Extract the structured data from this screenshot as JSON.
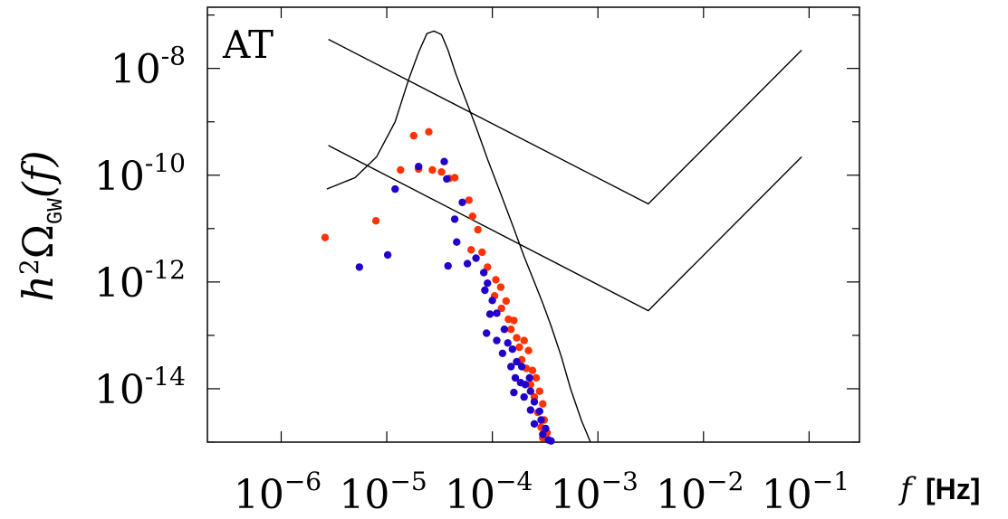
{
  "chart_data": {
    "type": "scatter",
    "title": "",
    "panel_label": "AT",
    "xlabel": "f",
    "xunit": "[Hz]",
    "ylabel": "h²Ω_GW(f)",
    "ylabel_parts": {
      "main": "h",
      "sup": "2",
      "omega": "Ω",
      "sub": "GW",
      "arg": "(f)"
    },
    "x_scale": "log",
    "y_scale": "log",
    "xlim": [
      2e-07,
      0.3
    ],
    "ylim": [
      1e-15,
      1.4e-07
    ],
    "x_ticks": [
      {
        "value": 1e-06,
        "base": "10",
        "exp": "−6"
      },
      {
        "value": 1e-05,
        "base": "10",
        "exp": "−5"
      },
      {
        "value": 0.0001,
        "base": "10",
        "exp": "−4"
      },
      {
        "value": 0.001,
        "base": "10",
        "exp": "−3"
      },
      {
        "value": 0.01,
        "base": "10",
        "exp": "−2"
      },
      {
        "value": 0.1,
        "base": "10",
        "exp": "−1"
      }
    ],
    "y_ticks": [
      {
        "value": 1e-08,
        "base": "10",
        "exp": "-8"
      },
      {
        "value": 1e-10,
        "base": "10",
        "exp": "-10"
      },
      {
        "value": 1e-12,
        "base": "10",
        "exp": "-12"
      },
      {
        "value": 1e-14,
        "base": "10",
        "exp": "-14"
      }
    ],
    "grid": false,
    "series": [
      {
        "type": "scatter",
        "color": "#ff3300",
        "points": [
          [
            2.6e-06,
            6.8e-12
          ],
          [
            7.9e-06,
            1.4e-11
          ],
          [
            1.35e-05,
            1.25e-10
          ],
          [
            1.8e-05,
            5.5e-10
          ],
          [
            2.5e-05,
            6.5e-10
          ],
          [
            2e-05,
            1.3e-10
          ],
          [
            2.7e-05,
            1.25e-10
          ],
          [
            3.3e-05,
            1.15e-10
          ],
          [
            3.9e-05,
            8.7e-11
          ],
          [
            4.4e-05,
            9e-11
          ],
          [
            6e-05,
            3.4e-11
          ],
          [
            6.5e-05,
            1.7e-11
          ],
          [
            7.3e-05,
            9.5e-12
          ],
          [
            8e-05,
            3.6e-12
          ],
          [
            6.3e-05,
            4e-12
          ],
          [
            9e-05,
            1.9e-12
          ],
          [
            0.000108,
            1.1e-12
          ],
          [
            0.00012,
            8e-13
          ],
          [
            0.000105,
            5.5e-13
          ],
          [
            0.000135,
            4.4e-13
          ],
          [
            0.000122,
            3.2e-13
          ],
          [
            0.000142,
            2e-13
          ],
          [
            0.00016,
            1.9e-13
          ],
          [
            0.00015,
            1.3e-13
          ],
          [
            0.00017,
            9e-14
          ],
          [
            0.0002,
            8e-14
          ],
          [
            0.00018,
            6e-14
          ],
          [
            0.00022,
            5.2e-14
          ],
          [
            0.00019,
            3.5e-14
          ],
          [
            0.00021,
            2.4e-14
          ],
          [
            0.00024,
            2.2e-14
          ],
          [
            0.00026,
            1.6e-14
          ],
          [
            0.00023,
            1.2e-14
          ],
          [
            0.00028,
            9e-15
          ],
          [
            0.00025,
            7e-15
          ],
          [
            0.0003,
            5.2e-15
          ],
          [
            0.00027,
            3.6e-15
          ],
          [
            0.00031,
            2.6e-15
          ],
          [
            0.00029,
            1.9e-15
          ],
          [
            0.00033,
            1.5e-15
          ],
          [
            0.0003,
            1.2e-15
          ]
        ]
      },
      {
        "type": "scatter",
        "color": "#2200cc",
        "points": [
          [
            5.5e-06,
            1.9e-12
          ],
          [
            1.02e-05,
            3.2e-12
          ],
          [
            1.2e-05,
            5.5e-11
          ],
          [
            2e-05,
            1.45e-10
          ],
          [
            3.5e-05,
            1.8e-10
          ],
          [
            3.7e-05,
            8.5e-11
          ],
          [
            5.2e-05,
            3.1e-11
          ],
          [
            4.4e-05,
            1.5e-11
          ],
          [
            4.6e-05,
            5.6e-12
          ],
          [
            3.8e-05,
            2e-12
          ],
          [
            5.8e-05,
            2.2e-12
          ],
          [
            7e-05,
            2.8e-12
          ],
          [
            8.3e-05,
            1.5e-12
          ],
          [
            9e-05,
            9.5e-13
          ],
          [
            8.5e-05,
            7e-13
          ],
          [
            0.0001,
            4.5e-13
          ],
          [
            9.5e-05,
            2.5e-13
          ],
          [
            0.00011,
            2.6e-13
          ],
          [
            8.8e-05,
            1.1e-13
          ],
          [
            0.00013,
            1.3e-13
          ],
          [
            0.00011,
            8e-14
          ],
          [
            0.00014,
            7.2e-14
          ],
          [
            0.000125,
            4.6e-14
          ],
          [
            0.000155,
            5.5e-14
          ],
          [
            0.00017,
            3.2e-14
          ],
          [
            0.00015,
            2.6e-14
          ],
          [
            0.00019,
            2.6e-14
          ],
          [
            0.000165,
            1.6e-14
          ],
          [
            0.000185,
            1.3e-14
          ],
          [
            0.000205,
            1.2e-14
          ],
          [
            0.000225,
            1.6e-14
          ],
          [
            0.00016,
            8.5e-15
          ],
          [
            0.00023,
            9e-15
          ],
          [
            0.0002,
            7e-15
          ],
          [
            0.00025,
            5.7e-15
          ],
          [
            0.00023,
            4e-15
          ],
          [
            0.00028,
            3.8e-15
          ],
          [
            0.00025,
            2.2e-15
          ],
          [
            0.00029,
            2.6e-15
          ],
          [
            0.00032,
            1.8e-15
          ],
          [
            0.0003,
            1.4e-15
          ],
          [
            0.00034,
            1.1e-15
          ],
          [
            0.00036,
            1.05e-15
          ]
        ]
      },
      {
        "type": "line",
        "color": "#000000",
        "points": [
          [
            2.7e-06,
            5.5e-11
          ],
          [
            5e-06,
            9e-11
          ],
          [
            8e-06,
            2.2e-10
          ],
          [
            1.2e-05,
            1e-09
          ],
          [
            1.6e-05,
            6e-09
          ],
          [
            2e-05,
            2e-08
          ],
          [
            2.4e-05,
            4.5e-08
          ],
          [
            2.8e-05,
            5e-08
          ],
          [
            3.3e-05,
            4.3e-08
          ],
          [
            3.8e-05,
            2.2e-08
          ],
          [
            4.5e-05,
            8e-09
          ],
          [
            5.5e-05,
            2.8e-09
          ],
          [
            7e-05,
            8e-10
          ],
          [
            9e-05,
            2e-10
          ],
          [
            0.00012,
            4.5e-11
          ],
          [
            0.00016,
            1e-11
          ],
          [
            0.0002,
            3e-12
          ],
          [
            0.00025,
            1e-12
          ],
          [
            0.0003,
            4e-13
          ],
          [
            0.00036,
            1.5e-13
          ],
          [
            0.00045,
            4e-14
          ],
          [
            0.00055,
            1e-14
          ],
          [
            0.0007,
            2.5e-15
          ],
          [
            0.00085,
            1e-15
          ]
        ]
      },
      {
        "type": "line",
        "color": "#000000",
        "points": [
          [
            2.8e-06,
            3.5e-08
          ],
          [
            0.003,
            2.9e-11
          ],
          [
            0.085,
            2.2e-08
          ]
        ]
      },
      {
        "type": "line",
        "color": "#000000",
        "points": [
          [
            2.8e-06,
            3.6e-10
          ],
          [
            0.003,
            2.9e-13
          ],
          [
            0.085,
            2.2e-10
          ]
        ]
      }
    ]
  }
}
